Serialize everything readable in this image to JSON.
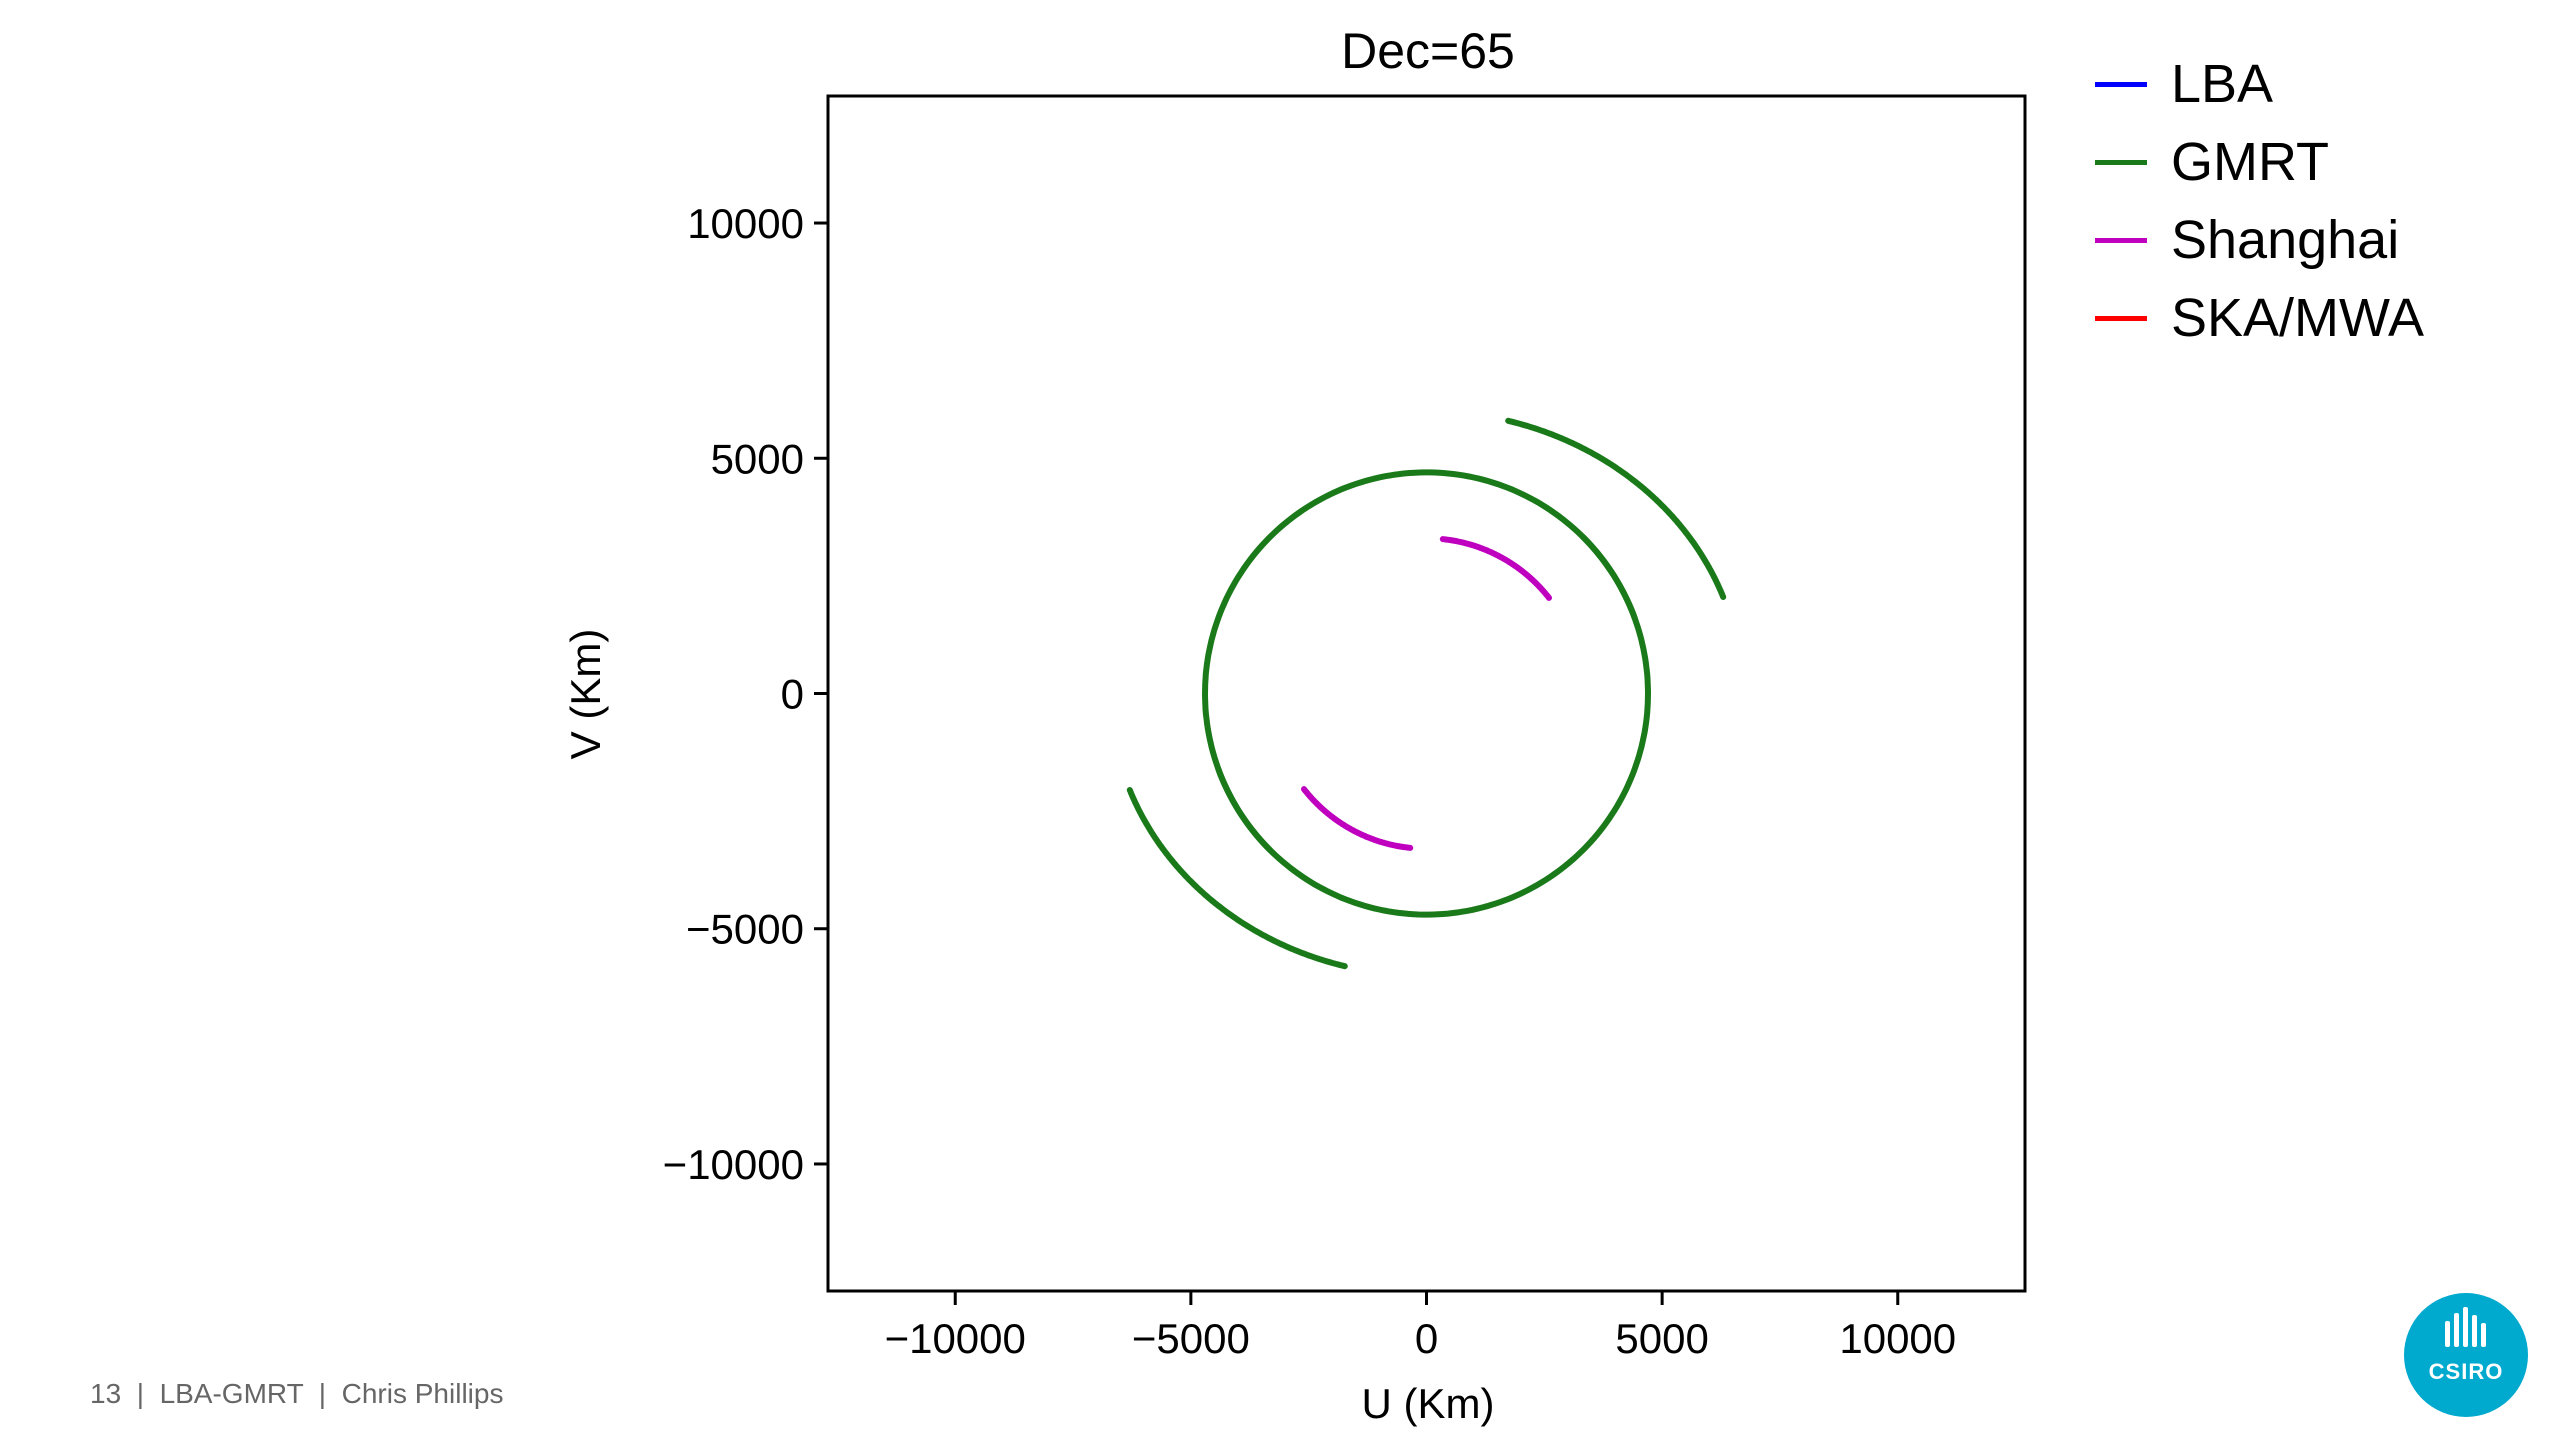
{
  "slide": {
    "page_number": "13",
    "separator": "|",
    "deck": "LBA-GMRT",
    "author": "Chris Phillips",
    "logo_text": "CSIRO",
    "logo_color": "#00a9ce"
  },
  "chart_data": {
    "type": "line",
    "title": "Dec=65",
    "xlabel": "U (Km)",
    "ylabel": "V (Km)",
    "xlim": [
      -12700,
      12700
    ],
    "ylim": [
      -12700,
      12700
    ],
    "xticks": [
      -10000,
      -5000,
      0,
      5000,
      10000
    ],
    "yticks": [
      -10000,
      -5000,
      0,
      5000,
      10000
    ],
    "tick_label_format": "unicode-minus",
    "grid": false,
    "legend_placement": "outside-top-right",
    "series": [
      {
        "name": "LBA",
        "color": "#0000ff",
        "arcs": []
      },
      {
        "name": "GMRT",
        "color": "#1a7a1a",
        "arcs": [
          {
            "cx": 0,
            "cy": 0,
            "a": 4700,
            "b": 4700,
            "rot": 0,
            "t0": 20,
            "t1": 225
          },
          {
            "cx": 0,
            "cy": 0,
            "a": 4700,
            "b": 4700,
            "rot": 0,
            "t0": 200,
            "t1": 405
          },
          {
            "cx": 0,
            "cy": 0,
            "a": 6700,
            "b": 6000,
            "rot": 0,
            "t0": 20,
            "t1": 75
          },
          {
            "cx": 0,
            "cy": 0,
            "a": 6700,
            "b": 6000,
            "rot": 0,
            "t0": 200,
            "t1": 255
          }
        ]
      },
      {
        "name": "Shanghai",
        "color": "#bf00bf",
        "arcs": [
          {
            "cx": 0,
            "cy": 0,
            "a": 3300,
            "b": 3300,
            "rot": 0,
            "t0": 38,
            "t1": 84
          },
          {
            "cx": 0,
            "cy": 0,
            "a": 3300,
            "b": 3300,
            "rot": 0,
            "t0": 218,
            "t1": 264
          }
        ]
      },
      {
        "name": "SKA/MWA",
        "color": "#ff0000",
        "arcs": []
      }
    ]
  }
}
